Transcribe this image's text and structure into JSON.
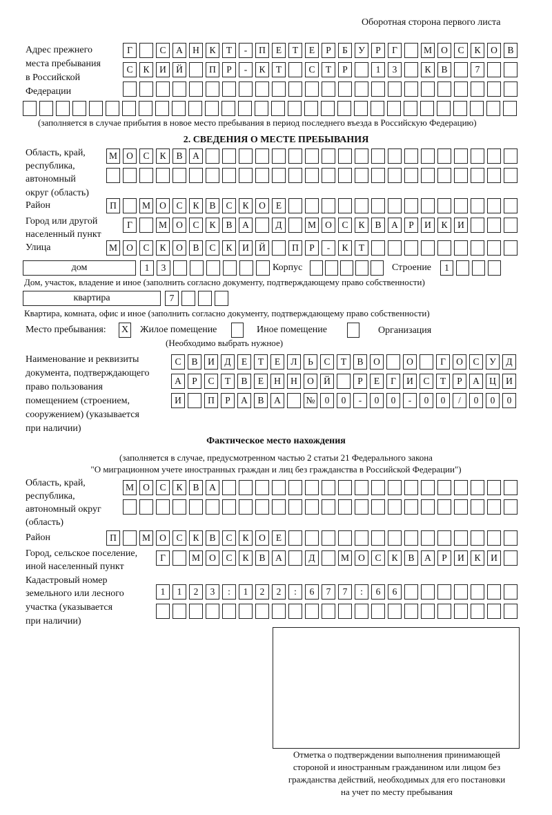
{
  "page_header": "Оборотная сторона первого листа",
  "previous_address": {
    "label": [
      "Адрес прежнего",
      "места пребывания",
      "в Российской",
      "Федерации"
    ],
    "rows": [
      [
        "Г",
        "",
        "С",
        "А",
        "Н",
        "К",
        "Т",
        "-",
        "П",
        "Е",
        "Т",
        "Е",
        "Р",
        "Б",
        "У",
        "Р",
        "Г",
        "",
        "М",
        "О",
        "С",
        "К",
        "О",
        "В"
      ],
      [
        "С",
        "К",
        "И",
        "Й",
        "",
        "П",
        "Р",
        "-",
        "К",
        "Т",
        "",
        "С",
        "Т",
        "Р",
        "",
        "1",
        "3",
        "",
        "К",
        "В",
        "",
        "7"
      ],
      [],
      []
    ],
    "note": "(заполняется в случае прибытия в новое место пребывания в период последнего въезда в Российскую Федерацию)"
  },
  "section2": {
    "title": "2. СВЕДЕНИЯ О МЕСТЕ ПРЕБЫВАНИЯ",
    "region_label": [
      "Область, край,",
      "республика,",
      "автономный",
      "округ (область)"
    ],
    "region_rows": [
      [
        "М",
        "О",
        "С",
        "К",
        "В",
        "А"
      ],
      []
    ],
    "district_label": "Район",
    "district": [
      "П",
      "",
      "М",
      "О",
      "С",
      "К",
      "В",
      "С",
      "К",
      "О",
      "Е"
    ],
    "city_label": [
      "Город или другой",
      "населенный пункт"
    ],
    "city": [
      "Г",
      "",
      "М",
      "О",
      "С",
      "К",
      "В",
      "А",
      "",
      "Д",
      "",
      "М",
      "О",
      "С",
      "К",
      "В",
      "А",
      "Р",
      "И",
      "К",
      "И"
    ],
    "street_label": "Улица",
    "street": [
      "М",
      "О",
      "С",
      "К",
      "О",
      "В",
      "С",
      "К",
      "И",
      "Й",
      "",
      "П",
      "Р",
      "-",
      "К",
      "Т"
    ],
    "house_type": "дом",
    "house_number": [
      "1",
      "3"
    ],
    "korpus_label": "Корпус",
    "korpus": [],
    "building_label": "Строение",
    "building": [
      "1"
    ],
    "house_note": "Дом, участок, владение и иное (заполнить согласно документу, подтверждающему право собственности)",
    "apartment_type": "квартира",
    "apartment_number": [
      "7"
    ],
    "apartment_note": "Квартира, комната, офис и иное (заполнить согласно документу, подтверждающему право собственности)",
    "place_label": "Место пребывания:",
    "place_options": [
      {
        "label": "Жилое помещение",
        "mark": "X"
      },
      {
        "label": "Иное помещение",
        "mark": ""
      },
      {
        "label": "Организация",
        "mark": ""
      }
    ],
    "place_note": "(Необходимо выбрать нужное)",
    "doc_label": [
      "Наименование и реквизиты",
      "документа, подтверждающего",
      "право пользования",
      "помещением (строением,",
      "сооружением) (указывается",
      "при наличии)"
    ],
    "doc_rows": [
      [
        "С",
        "В",
        "И",
        "Д",
        "Е",
        "Т",
        "Е",
        "Л",
        "Ь",
        "С",
        "Т",
        "В",
        "О",
        "",
        "О",
        "",
        "Г",
        "О",
        "С",
        "У",
        "Д"
      ],
      [
        "А",
        "Р",
        "С",
        "Т",
        "В",
        "Е",
        "Н",
        "Н",
        "О",
        "Й",
        "",
        "Р",
        "Е",
        "Г",
        "И",
        "С",
        "Т",
        "Р",
        "А",
        "Ц",
        "И"
      ],
      [
        "И",
        "",
        "П",
        "Р",
        "А",
        "В",
        "А",
        "",
        "№",
        "0",
        "0",
        "-",
        "0",
        "0",
        "-",
        "0",
        "0",
        "/",
        "0",
        "0",
        "0"
      ]
    ]
  },
  "actual_location": {
    "title": "Фактическое место нахождения",
    "subtitle": [
      "(заполняется в случае, предусмотренном частью 2 статьи 21 Федерального закона",
      "\"О миграционном учете иностранных граждан и лиц без гражданства в Российской Федерации\")"
    ],
    "region_label": [
      "Область, край,",
      "республика,",
      "автономный округ",
      "(область)"
    ],
    "region_rows": [
      [
        "М",
        "О",
        "С",
        "К",
        "В",
        "А"
      ],
      []
    ],
    "district_label": "Район",
    "district": [
      "П",
      "",
      "М",
      "О",
      "С",
      "К",
      "В",
      "С",
      "К",
      "О",
      "Е"
    ],
    "city_label": [
      "Город, сельское поселение,",
      "иной населенный пункт"
    ],
    "city": [
      "Г",
      "",
      "М",
      "О",
      "С",
      "К",
      "В",
      "А",
      "",
      "Д",
      "",
      "М",
      "О",
      "С",
      "К",
      "В",
      "А",
      "Р",
      "И",
      "К",
      "И"
    ],
    "cadastral_label": [
      "Кадастровый номер",
      "земельного или лесного",
      "участка (указывается",
      "при наличии)"
    ],
    "cadastral_rows": [
      [
        "1",
        "1",
        "2",
        "3",
        ":",
        "1",
        "2",
        "2",
        ":",
        "6",
        "7",
        "7",
        ":",
        "6",
        "6"
      ],
      []
    ]
  },
  "confirmation_note": [
    "Отметка о подтверждении выполнения принимающей",
    "стороной и иностранным гражданином или лицом без",
    "гражданства действий, необходимых для его постановки",
    "на учет по месту пребывания"
  ]
}
